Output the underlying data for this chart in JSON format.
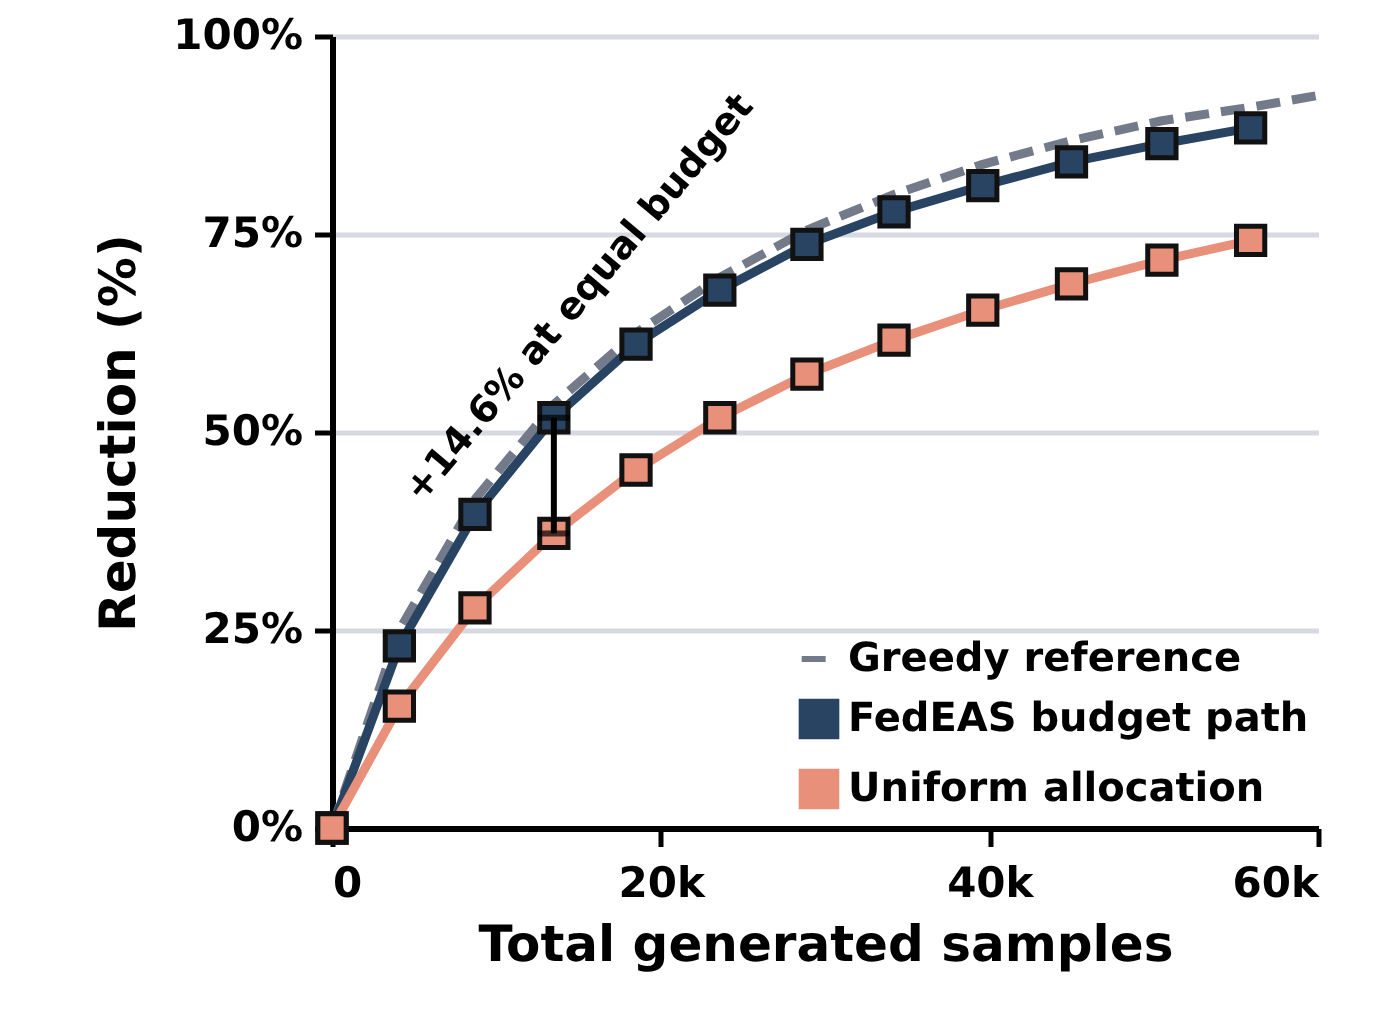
{
  "chart_data": {
    "type": "line",
    "xlabel": "Total generated samples",
    "ylabel": "Reduction (%)",
    "x": [
      0,
      4100,
      8700,
      13500,
      18500,
      23600,
      28900,
      34200,
      39600,
      45000,
      50500,
      55900
    ],
    "series": [
      {
        "name": "Greedy reference",
        "color": "#737b8a",
        "line_style": "dashed",
        "marker": "none",
        "x": [
          0,
          4100,
          8700,
          13500,
          18500,
          23600,
          28900,
          34200,
          39600,
          45000,
          50500,
          55900,
          60000
        ],
        "values": [
          0,
          25,
          41.5,
          53.5,
          62.5,
          69.5,
          75.5,
          80,
          83.8,
          86.8,
          89.3,
          91,
          92.5
        ]
      },
      {
        "name": "FedEAS budget path",
        "color": "#284462",
        "line_style": "solid",
        "marker": "square",
        "values": [
          0,
          23,
          39.6,
          51.8,
          61.1,
          67.9,
          73.7,
          77.8,
          81.1,
          84.1,
          86.4,
          88.4
        ]
      },
      {
        "name": "Uniform allocation",
        "color": "#e8907a",
        "line_style": "solid",
        "marker": "square",
        "values": [
          0,
          15.4,
          27.8,
          37.2,
          45.2,
          51.8,
          57.3,
          61.6,
          65.4,
          68.7,
          71.7,
          74.2
        ]
      }
    ],
    "annotations": [
      {
        "text": "+14.6% at equal budget",
        "x": 13500,
        "y": 51.8
      }
    ],
    "xlim": [
      0,
      60000
    ],
    "xticks": [
      0,
      {
        "value": 20000,
        "label": "20k"
      },
      {
        "value": 40000,
        "label": "40k"
      },
      {
        "value": 60000,
        "label": "60k"
      }
    ],
    "ylim": [
      0,
      100
    ],
    "yticks": [
      {
        "value": 0,
        "label": "0%"
      },
      {
        "value": 25,
        "label": "25%"
      },
      {
        "value": 50,
        "label": "50%"
      },
      {
        "value": 75,
        "label": "75%"
      },
      {
        "value": 100,
        "label": "100%"
      }
    ],
    "grid": "y",
    "legend": "bottom right"
  }
}
